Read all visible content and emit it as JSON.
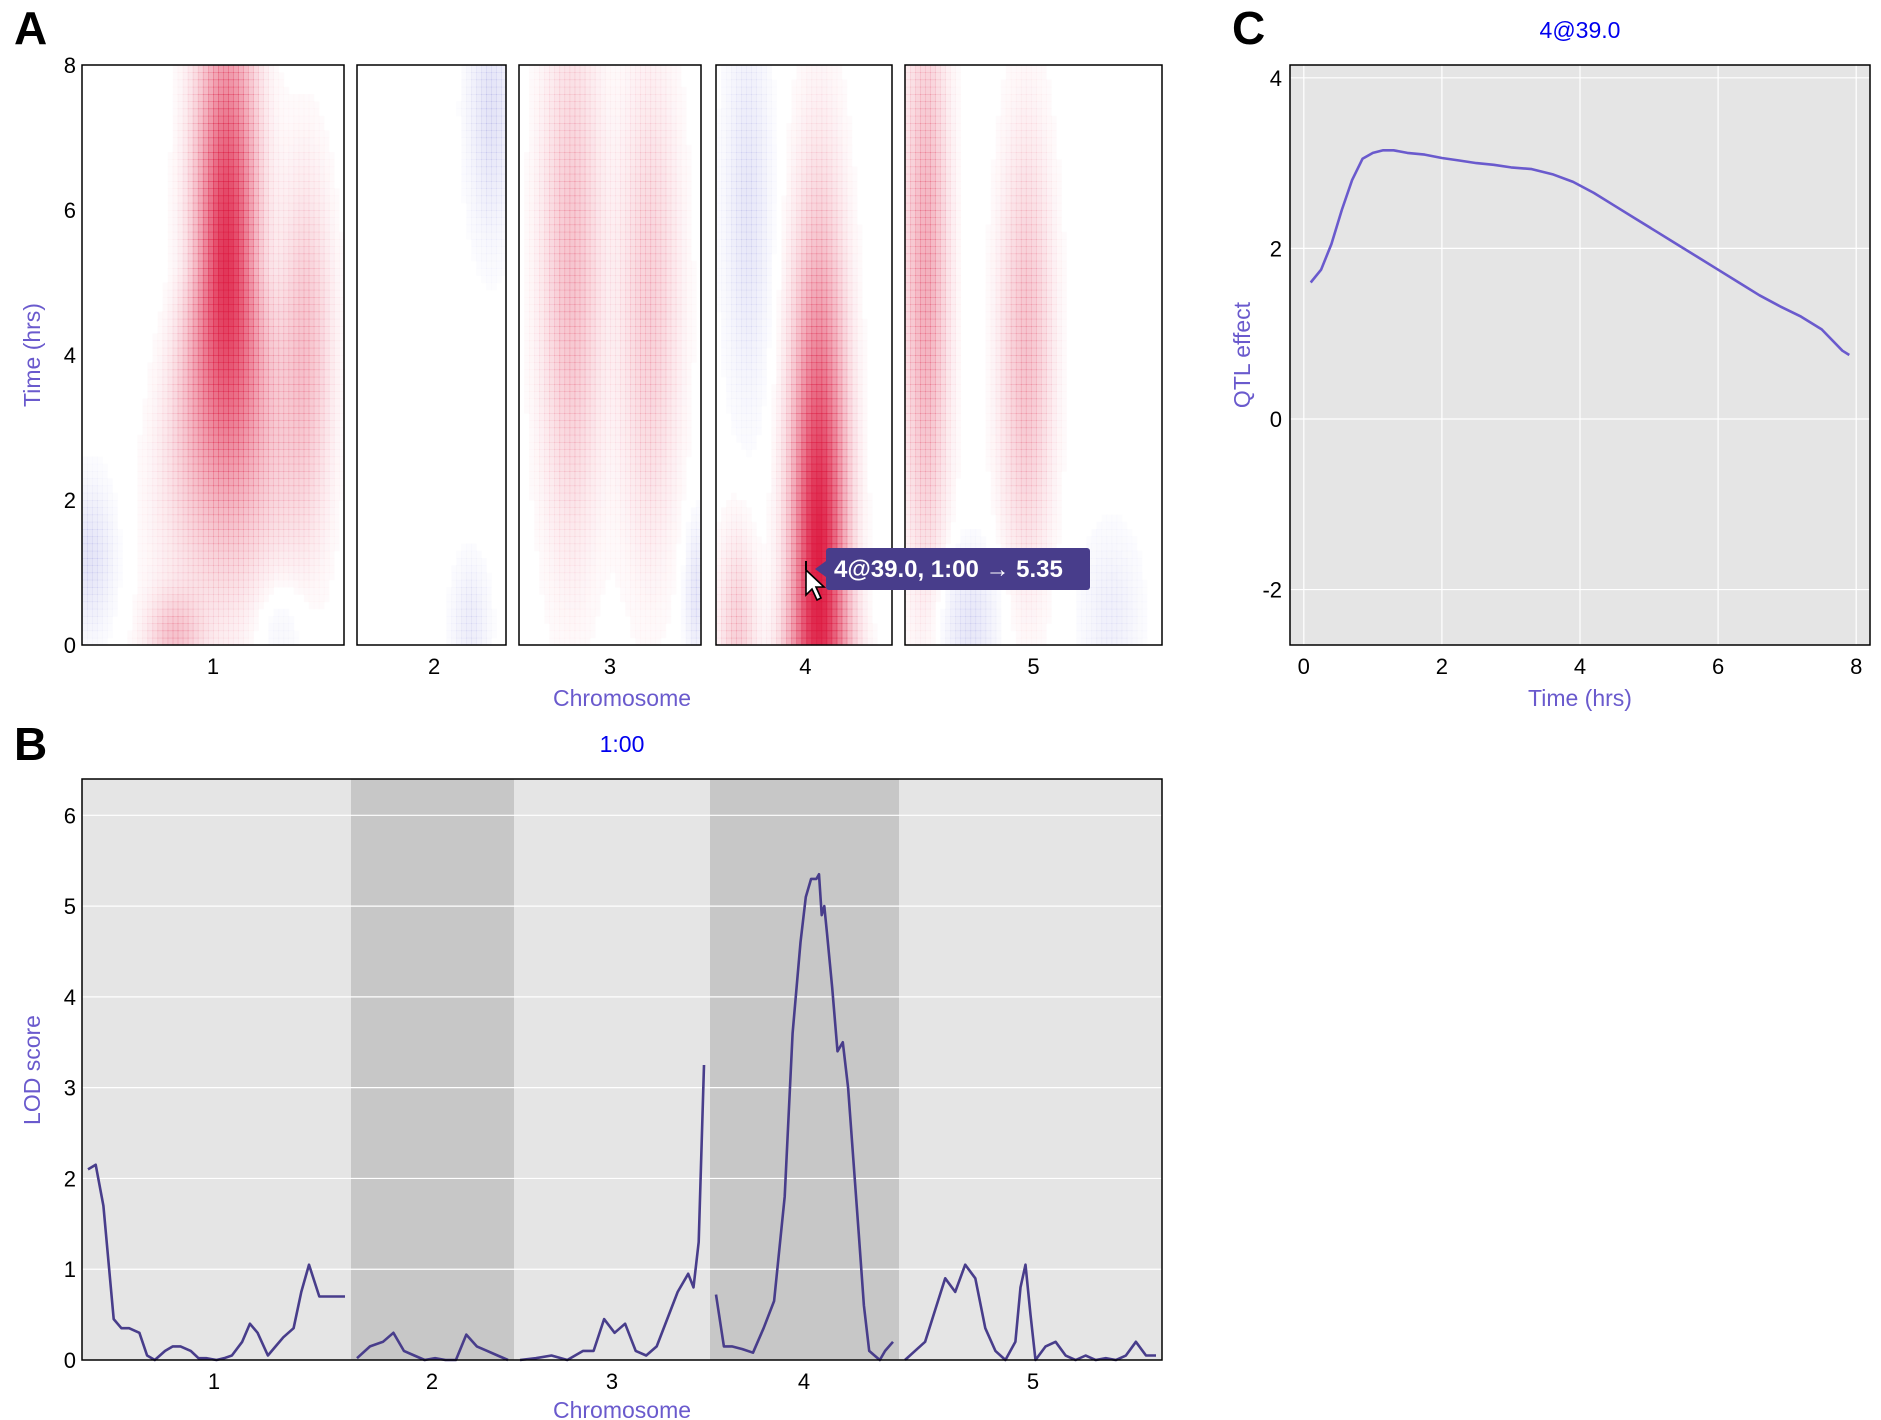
{
  "panels": {
    "a": "A",
    "b": "B",
    "c": "C"
  },
  "tooltip": {
    "text": "4@39.0, 1:00 → 5.35"
  },
  "chart_data": [
    {
      "type": "heatmap",
      "panel": "A",
      "xlabel": "Chromosome",
      "ylabel": "Time (hrs)",
      "ylim": [
        0,
        8
      ],
      "yticks": [
        "0",
        "2",
        "4",
        "6",
        "8"
      ],
      "chromosomes": [
        "1",
        "2",
        "3",
        "4",
        "5"
      ],
      "chr_lengths": [
        100,
        58,
        70,
        67,
        100
      ],
      "chr_tick_pos": [
        50,
        30,
        35,
        34,
        50
      ],
      "colors": {
        "positive": "#dc143c",
        "negative": "#5a5acd",
        "zero": "#ffffff"
      },
      "value_max": 5.35,
      "peaks": [
        {
          "chr": "1",
          "pos": 55,
          "t_center": 5.2,
          "peak": 4.8,
          "pos_width": 8,
          "t_width": 2.3,
          "pos_slope": 1.5
        },
        {
          "chr": "1",
          "pos": 85,
          "t_center": 4.0,
          "peak": 1.4,
          "pos_width": 7,
          "t_width": 1.6,
          "pos_slope": 0
        },
        {
          "chr": "1",
          "pos": 35,
          "t_center": 0.1,
          "peak": 1.2,
          "pos_width": 7,
          "t_width": 0.4,
          "pos_slope": 0
        },
        {
          "chr": "1",
          "pos": 2,
          "t_center": 1.2,
          "peak": -0.9,
          "pos_width": 7,
          "t_width": 0.7,
          "pos_slope": 0
        },
        {
          "chr": "1",
          "pos": 75,
          "t_center": 0.3,
          "peak": -0.5,
          "pos_width": 8,
          "t_width": 0.6,
          "pos_slope": 0
        },
        {
          "chr": "2",
          "pos": 52,
          "t_center": 7.4,
          "peak": -0.9,
          "pos_width": 6,
          "t_width": 1.2,
          "pos_slope": 0
        },
        {
          "chr": "2",
          "pos": 44,
          "t_center": 0.3,
          "peak": -0.6,
          "pos_width": 5,
          "t_width": 0.6,
          "pos_slope": 0
        },
        {
          "chr": "3",
          "pos": 20,
          "t_center": 5.0,
          "peak": 1.4,
          "pos_width": 8,
          "t_width": 2.4,
          "pos_slope": 0
        },
        {
          "chr": "3",
          "pos": 50,
          "t_center": 4.6,
          "peak": 1.1,
          "pos_width": 8,
          "t_width": 2.2,
          "pos_slope": 0
        },
        {
          "chr": "3",
          "pos": 68,
          "t_center": 0.7,
          "peak": -0.8,
          "pos_width": 3,
          "t_width": 0.7,
          "pos_slope": 0
        },
        {
          "chr": "4",
          "pos": 39,
          "t_center": 1.0,
          "peak": 5.35,
          "pos_width": 7,
          "t_width": 2.8,
          "pos_slope": 0.9
        },
        {
          "chr": "4",
          "pos": 8,
          "t_center": 0.1,
          "peak": 1.1,
          "pos_width": 5,
          "t_width": 1.0,
          "pos_slope": 0
        },
        {
          "chr": "4",
          "pos": 12,
          "t_center": 6.0,
          "peak": -0.8,
          "pos_width": 6,
          "t_width": 1.8,
          "pos_slope": 0
        },
        {
          "chr": "5",
          "pos": 8,
          "t_center": 5.0,
          "peak": 1.9,
          "pos_width": 6,
          "t_width": 2.6,
          "pos_slope": 0
        },
        {
          "chr": "5",
          "pos": 47,
          "t_center": 4.0,
          "peak": 1.4,
          "pos_width": 7,
          "t_width": 2.0,
          "pos_slope": 0
        },
        {
          "chr": "5",
          "pos": 25,
          "t_center": 0.3,
          "peak": -0.8,
          "pos_width": 8,
          "t_width": 0.7,
          "pos_slope": 0
        },
        {
          "chr": "5",
          "pos": 80,
          "t_center": 0.4,
          "peak": -0.5,
          "pos_width": 8,
          "t_width": 0.8,
          "pos_slope": 0
        }
      ]
    },
    {
      "type": "line",
      "panel": "B",
      "title": "1:00",
      "xlabel": "Chromosome",
      "ylabel": "LOD score",
      "ylim": [
        0,
        6.4
      ],
      "yticks": [
        0,
        1,
        2,
        3,
        4,
        5,
        6
      ],
      "grid": true,
      "chromosomes": [
        "1",
        "2",
        "3",
        "4",
        "5"
      ],
      "series": [
        {
          "chr": "1",
          "x": [
            0,
            3,
            6,
            10,
            13,
            16,
            20,
            23,
            26,
            30,
            33,
            36,
            40,
            43,
            46,
            50,
            53,
            56,
            60,
            63,
            66,
            70,
            73,
            76,
            80,
            83,
            86,
            90,
            93,
            96,
            100
          ],
          "y": [
            2.1,
            2.15,
            1.7,
            0.45,
            0.35,
            0.35,
            0.3,
            0.05,
            0.0,
            0.1,
            0.15,
            0.15,
            0.1,
            0.02,
            0.02,
            0.0,
            0.02,
            0.05,
            0.2,
            0.4,
            0.3,
            0.05,
            0.15,
            0.25,
            0.35,
            0.75,
            1.05,
            0.7,
            0.7,
            0.7,
            0.7
          ]
        },
        {
          "chr": "2",
          "x": [
            0,
            5,
            10,
            14,
            18,
            22,
            26,
            30,
            34,
            38,
            42,
            46,
            50,
            54,
            58
          ],
          "y": [
            0.02,
            0.15,
            0.2,
            0.3,
            0.1,
            0.05,
            0.0,
            0.02,
            0.0,
            0.0,
            0.28,
            0.15,
            0.1,
            0.05,
            0.0
          ]
        },
        {
          "chr": "3",
          "x": [
            0,
            6,
            12,
            18,
            24,
            28,
            32,
            36,
            40,
            44,
            48,
            52,
            56,
            60,
            64,
            66,
            68,
            70
          ],
          "y": [
            0.0,
            0.02,
            0.05,
            0.0,
            0.1,
            0.1,
            0.45,
            0.3,
            0.4,
            0.1,
            0.05,
            0.15,
            0.45,
            0.75,
            0.95,
            0.8,
            1.3,
            3.25
          ]
        },
        {
          "chr": "4",
          "x": [
            0,
            3,
            6,
            10,
            14,
            18,
            22,
            26,
            29,
            32,
            34,
            36,
            38,
            39,
            40,
            41,
            42,
            44,
            46,
            48,
            50,
            52,
            54,
            56,
            58,
            60,
            62,
            64,
            67
          ],
          "y": [
            0.72,
            0.15,
            0.15,
            0.12,
            0.08,
            0.35,
            0.65,
            1.8,
            3.6,
            4.6,
            5.1,
            5.3,
            5.3,
            5.35,
            4.9,
            5.0,
            4.7,
            4.1,
            3.4,
            3.5,
            3.0,
            2.2,
            1.4,
            0.6,
            0.1,
            0.05,
            0.0,
            0.1,
            0.2
          ]
        },
        {
          "chr": "5",
          "x": [
            0,
            4,
            8,
            12,
            16,
            20,
            24,
            28,
            32,
            36,
            40,
            44,
            46,
            48,
            50,
            52,
            56,
            60,
            64,
            68,
            72,
            76,
            80,
            84,
            88,
            92,
            96,
            100
          ],
          "y": [
            0.0,
            0.1,
            0.2,
            0.55,
            0.9,
            0.75,
            1.05,
            0.9,
            0.35,
            0.1,
            0.0,
            0.2,
            0.8,
            1.05,
            0.5,
            0.0,
            0.15,
            0.2,
            0.05,
            0.0,
            0.05,
            0.0,
            0.02,
            0.0,
            0.05,
            0.2,
            0.05,
            0.05
          ]
        }
      ]
    },
    {
      "type": "line",
      "panel": "C",
      "title": "4@39.0",
      "xlabel": "Time (hrs)",
      "ylabel": "QTL effect",
      "xlim": [
        -0.2,
        8.2
      ],
      "ylim": [
        -2.65,
        4.15
      ],
      "xticks": [
        0,
        2,
        4,
        6,
        8
      ],
      "yticks": [
        -2,
        0,
        2,
        4
      ],
      "grid": true,
      "x": [
        0.1,
        0.25,
        0.4,
        0.55,
        0.7,
        0.85,
        1.0,
        1.15,
        1.3,
        1.5,
        1.75,
        2.0,
        2.25,
        2.5,
        2.75,
        3.0,
        3.3,
        3.6,
        3.9,
        4.2,
        4.5,
        4.8,
        5.1,
        5.4,
        5.7,
        6.0,
        6.3,
        6.6,
        6.9,
        7.2,
        7.5,
        7.8,
        7.9
      ],
      "y": [
        1.6,
        1.75,
        2.05,
        2.45,
        2.8,
        3.05,
        3.12,
        3.15,
        3.15,
        3.12,
        3.1,
        3.06,
        3.03,
        3.0,
        2.98,
        2.95,
        2.93,
        2.87,
        2.78,
        2.65,
        2.5,
        2.35,
        2.2,
        2.05,
        1.9,
        1.75,
        1.6,
        1.45,
        1.32,
        1.2,
        1.05,
        0.8,
        0.75
      ]
    }
  ]
}
